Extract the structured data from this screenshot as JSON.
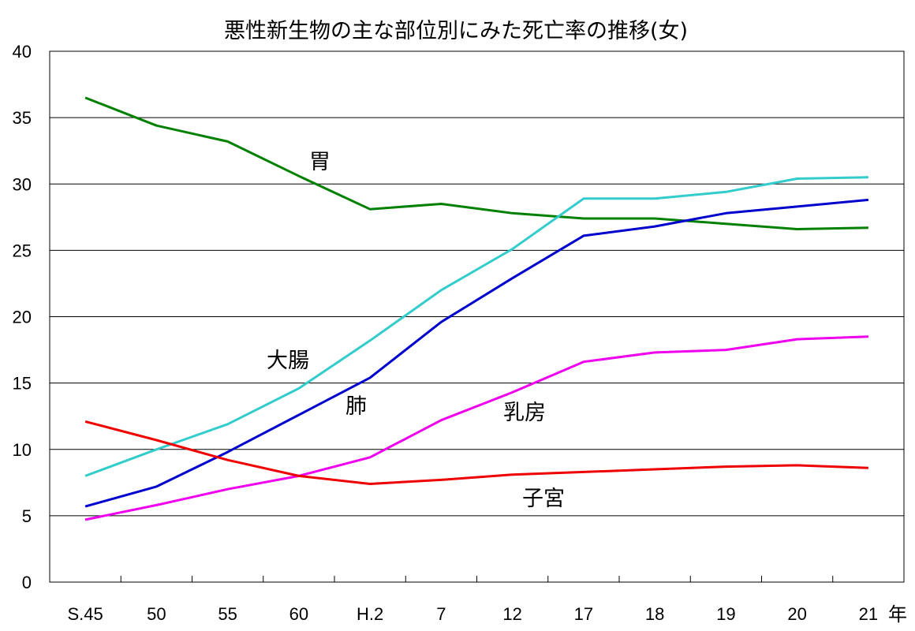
{
  "chart_data": {
    "type": "line",
    "title": "悪性新生物の主な部位別にみた死亡率の推移(女)",
    "xlabel": "",
    "ylabel": "",
    "x_unit": "年",
    "categories": [
      "S.45",
      "50",
      "55",
      "60",
      "H.2",
      "7",
      "12",
      "17",
      "18",
      "19",
      "20",
      "21"
    ],
    "ylim": [
      0,
      40
    ],
    "yticks": [
      0,
      5,
      10,
      15,
      20,
      25,
      30,
      35,
      40
    ],
    "grid": "horizontal",
    "legend": "none",
    "series": [
      {
        "name": "胃",
        "color": "#008000",
        "values": [
          36.5,
          34.4,
          33.2,
          30.6,
          28.1,
          28.5,
          27.8,
          27.4,
          27.4,
          27.0,
          26.6,
          26.7
        ]
      },
      {
        "name": "大腸",
        "color": "#33cccc",
        "values": [
          8.0,
          10.0,
          11.9,
          14.6,
          18.2,
          22.0,
          25.1,
          28.9,
          28.9,
          29.4,
          30.4,
          30.5
        ]
      },
      {
        "name": "肺",
        "color": "#0000cc",
        "values": [
          5.7,
          7.2,
          9.8,
          12.6,
          15.4,
          19.6,
          22.9,
          26.1,
          26.8,
          27.8,
          28.3,
          28.8
        ]
      },
      {
        "name": "乳房",
        "color": "#ee00ee",
        "values": [
          4.7,
          5.8,
          7.0,
          8.0,
          9.4,
          12.2,
          14.3,
          16.6,
          17.3,
          17.5,
          18.3,
          18.5
        ]
      },
      {
        "name": "子宮",
        "color": "#ee0000",
        "values": [
          12.1,
          10.7,
          9.2,
          8.0,
          7.4,
          7.7,
          8.1,
          8.3,
          8.5,
          8.7,
          8.8,
          8.6
        ]
      }
    ],
    "annotations": [
      {
        "text": "胃",
        "series": "胃"
      },
      {
        "text": "大腸",
        "series": "大腸"
      },
      {
        "text": "肺",
        "series": "肺"
      },
      {
        "text": "乳房",
        "series": "乳房"
      },
      {
        "text": "子宮",
        "series": "子宮"
      }
    ]
  }
}
